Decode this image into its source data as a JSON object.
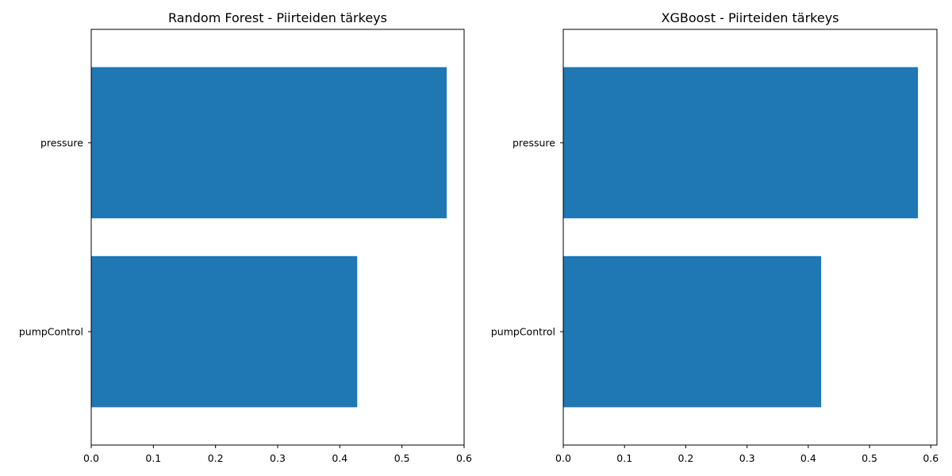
{
  "chart_data": [
    {
      "type": "bar",
      "orientation": "horizontal",
      "title": "Random Forest - Piirteiden tärkeys",
      "categories": [
        "pressure",
        "pumpControl"
      ],
      "values": [
        0.572,
        0.428
      ],
      "xlim": [
        0,
        0.6
      ],
      "xticks": [
        "0.0",
        "0.1",
        "0.2",
        "0.3",
        "0.4",
        "0.5",
        "0.6"
      ],
      "xlabel": "",
      "ylabel": "",
      "grid": false,
      "bar_color": "#1f77b4"
    },
    {
      "type": "bar",
      "orientation": "horizontal",
      "title": "XGBoost - Piirteiden tärkeys",
      "categories": [
        "pressure",
        "pumpControl"
      ],
      "values": [
        0.579,
        0.421
      ],
      "xlim": [
        0,
        0.61
      ],
      "xticks": [
        "0.0",
        "0.1",
        "0.2",
        "0.3",
        "0.4",
        "0.5",
        "0.6"
      ],
      "xlabel": "",
      "ylabel": "",
      "grid": false,
      "bar_color": "#1f77b4"
    }
  ]
}
